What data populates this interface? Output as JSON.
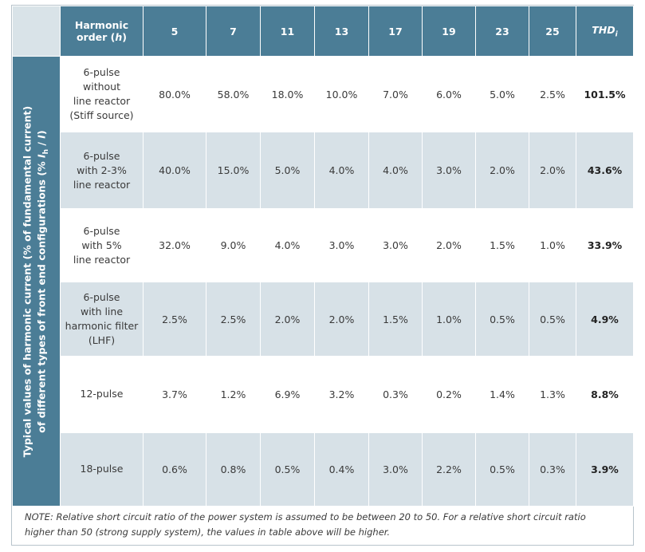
{
  "header": {
    "harmonic_line1": "Harmonic",
    "harmonic_line2": "order (",
    "harmonic_h": "h",
    "harmonic_close": ")",
    "orders": [
      "5",
      "7",
      "11",
      "13",
      "17",
      "19",
      "23",
      "25"
    ],
    "thd_main": "THD",
    "thd_sub": "i"
  },
  "side_label": {
    "line1_a": "Typical values of harmonic current (% of fundamental current)",
    "line2_a": "of different types of front end configurations (% ",
    "line2_i": "I",
    "line2_h": "h",
    "line2_slash": " / ",
    "line2_i2": "I",
    "line2_close": ")"
  },
  "rows": [
    {
      "config": [
        "6-pulse",
        "without",
        "line reactor",
        "(Stiff source)"
      ],
      "values": [
        "80.0%",
        "58.0%",
        "18.0%",
        "10.0%",
        "7.0%",
        "6.0%",
        "5.0%",
        "2.5%"
      ],
      "thd": "101.5%"
    },
    {
      "config": [
        "6-pulse",
        "with 2-3%",
        "line reactor"
      ],
      "values": [
        "40.0%",
        "15.0%",
        "5.0%",
        "4.0%",
        "4.0%",
        "3.0%",
        "2.0%",
        "2.0%"
      ],
      "thd": "43.6%"
    },
    {
      "config": [
        "6-pulse",
        "with 5%",
        "line reactor"
      ],
      "values": [
        "32.0%",
        "9.0%",
        "4.0%",
        "3.0%",
        "3.0%",
        "2.0%",
        "1.5%",
        "1.0%"
      ],
      "thd": "33.9%"
    },
    {
      "config": [
        "6-pulse",
        "with line",
        "harmonic filter",
        "(LHF)"
      ],
      "values": [
        "2.5%",
        "2.5%",
        "2.0%",
        "2.0%",
        "1.5%",
        "1.0%",
        "0.5%",
        "0.5%"
      ],
      "thd": "4.9%"
    },
    {
      "config": [
        "12-pulse"
      ],
      "values": [
        "3.7%",
        "1.2%",
        "6.9%",
        "3.2%",
        "0.3%",
        "0.2%",
        "1.4%",
        "1.3%"
      ],
      "thd": "8.8%"
    },
    {
      "config": [
        "18-pulse"
      ],
      "values": [
        "0.6%",
        "0.8%",
        "0.5%",
        "0.4%",
        "3.0%",
        "2.2%",
        "0.5%",
        "0.3%"
      ],
      "thd": "3.9%"
    }
  ],
  "note": {
    "line1": "NOTE: Relative short circuit ratio of the power system is assumed to be between 20 to 50. For a relative short circuit ratio",
    "line2": "higher than 50 (strong supply system), the values in table above will be higher."
  },
  "colors": {
    "header_bg": "#4b7d96",
    "corner_bg": "#d9e3e8",
    "band_bg": "#d7e1e7",
    "row_bg": "#ffffff"
  }
}
